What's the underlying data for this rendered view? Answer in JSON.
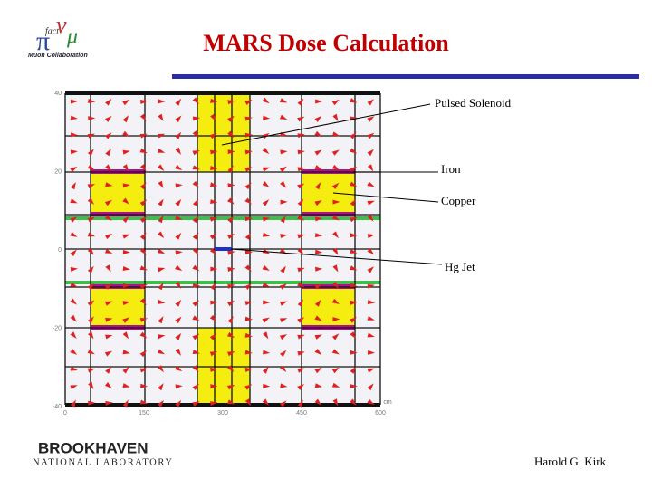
{
  "header": {
    "logo_top": "fact",
    "logo_bottom": "Muon Collaboration",
    "title": "MARS Dose Calculation"
  },
  "plot": {
    "y_ticks": [
      40,
      20,
      0,
      -20,
      -40
    ],
    "x_ticks": [
      0,
      150,
      300,
      450,
      600
    ],
    "x_unit": "cm"
  },
  "annotations": [
    "Pulsed Solenoid",
    "Iron",
    "Copper",
    "Hg Jet"
  ],
  "footer": {
    "lab_name": "BROOKHAVEN",
    "lab_sub": "NATIONAL LABORATORY",
    "author": "Harold G. Kirk"
  }
}
